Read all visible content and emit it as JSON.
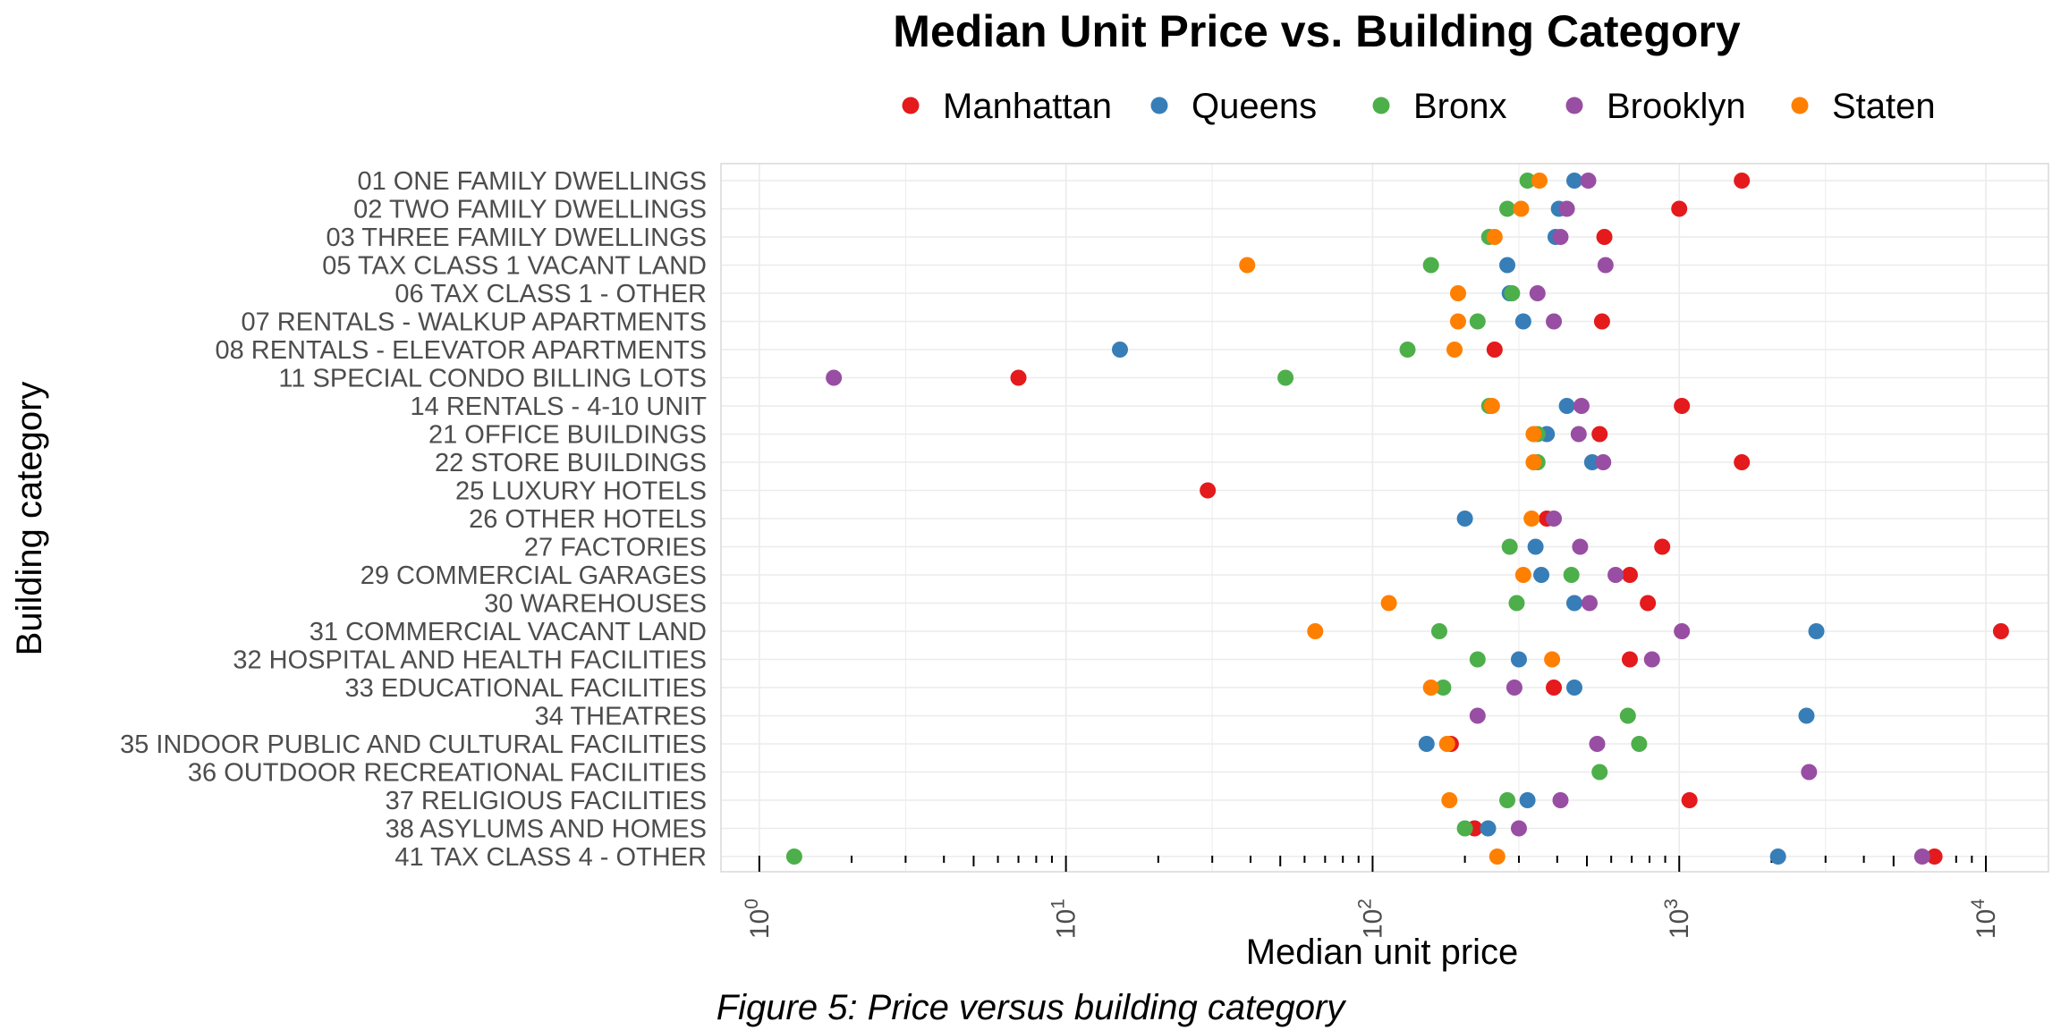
{
  "caption": "Figure 5: Price versus building category",
  "chart_data": {
    "type": "scatter",
    "title": "Median Unit Price vs. Building Category",
    "xlabel": "Median unit price",
    "ylabel": "Building category",
    "x_scale": "log10",
    "xlim": [
      0.75,
      16000
    ],
    "x_ticks": [
      {
        "value": 1,
        "base": "10",
        "exp": "0"
      },
      {
        "value": 10,
        "base": "10",
        "exp": "1"
      },
      {
        "value": 100,
        "base": "10",
        "exp": "2"
      },
      {
        "value": 1000,
        "base": "10",
        "exp": "3"
      },
      {
        "value": 10000,
        "base": "10",
        "exp": "4"
      }
    ],
    "grid": true,
    "legend_position": "top",
    "categories": [
      "01 ONE FAMILY DWELLINGS",
      "02 TWO FAMILY DWELLINGS",
      "03 THREE FAMILY DWELLINGS",
      "05 TAX CLASS 1 VACANT LAND",
      "06 TAX CLASS 1 - OTHER",
      "07 RENTALS - WALKUP APARTMENTS",
      "08 RENTALS - ELEVATOR APARTMENTS",
      "11 SPECIAL CONDO BILLING LOTS",
      "14 RENTALS - 4-10 UNIT",
      "21 OFFICE BUILDINGS",
      "22 STORE BUILDINGS",
      "25 LUXURY HOTELS",
      "26 OTHER HOTELS",
      "27 FACTORIES",
      "29 COMMERCIAL GARAGES",
      "30 WAREHOUSES",
      "31 COMMERCIAL VACANT LAND",
      "32 HOSPITAL AND HEALTH FACILITIES",
      "33 EDUCATIONAL FACILITIES",
      "34 THEATRES",
      "35 INDOOR PUBLIC AND CULTURAL FACILITIES",
      "36 OUTDOOR RECREATIONAL FACILITIES",
      "37 RELIGIOUS FACILITIES",
      "38 ASYLUMS AND HOMES",
      "41 TAX CLASS 4 - OTHER"
    ],
    "series": [
      {
        "name": "Manhattan",
        "color": "#e41a1c",
        "values": [
          1600,
          1000,
          570,
          null,
          null,
          560,
          250,
          7,
          1020,
          550,
          1600,
          29,
          370,
          880,
          690,
          790,
          11200,
          690,
          390,
          null,
          180,
          null,
          1080,
          215,
          6800
        ]
      },
      {
        "name": "Queens",
        "color": "#377eb8",
        "values": [
          455,
          405,
          395,
          275,
          280,
          310,
          15,
          null,
          430,
          370,
          520,
          null,
          200,
          340,
          355,
          455,
          2800,
          300,
          455,
          2600,
          150,
          null,
          320,
          238,
          2100
        ]
      },
      {
        "name": "Bronx",
        "color": "#4daf4a",
        "values": [
          320,
          275,
          240,
          155,
          285,
          220,
          130,
          52,
          240,
          345,
          345,
          null,
          null,
          280,
          445,
          295,
          165,
          220,
          170,
          680,
          740,
          550,
          275,
          200,
          1.3
        ]
      },
      {
        "name": "Brooklyn",
        "color": "#984ea3",
        "values": [
          505,
          430,
          410,
          575,
          345,
          390,
          null,
          1.75,
          480,
          470,
          565,
          null,
          390,
          475,
          620,
          510,
          1020,
          815,
          290,
          220,
          540,
          2650,
          410,
          300,
          6200
        ]
      },
      {
        "name": "Staten",
        "color": "#ff7f00",
        "values": [
          350,
          305,
          250,
          39,
          190,
          190,
          185,
          null,
          245,
          335,
          335,
          null,
          330,
          null,
          310,
          113,
          65,
          385,
          155,
          null,
          175,
          null,
          178,
          null,
          255
        ]
      }
    ]
  }
}
